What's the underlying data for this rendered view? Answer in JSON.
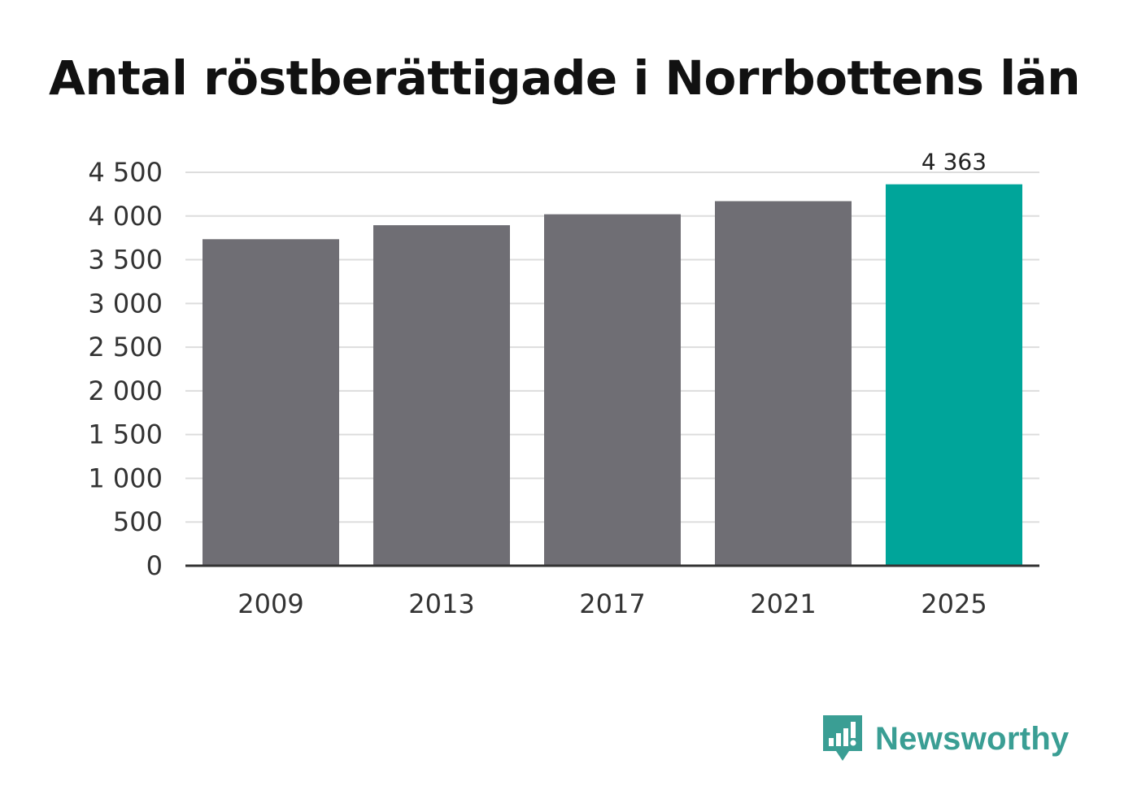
{
  "chart_data": {
    "type": "bar",
    "title": "Antal röstberättigade i Norrbottens län",
    "xlabel": "",
    "ylabel": "",
    "categories": [
      "2009",
      "2013",
      "2017",
      "2021",
      "2025"
    ],
    "values": [
      3735,
      3895,
      4020,
      4170,
      4363
    ],
    "highlight_index": 4,
    "data_labels": [
      null,
      null,
      null,
      null,
      "4 363"
    ],
    "ylim": [
      0,
      4500
    ],
    "yticks": [
      0,
      500,
      1000,
      1500,
      2000,
      2500,
      3000,
      3500,
      4000,
      4500
    ],
    "ytick_labels": [
      "0",
      "500",
      "1 000",
      "1 500",
      "2 000",
      "2 500",
      "3 000",
      "3 500",
      "4 000",
      "4 500"
    ],
    "grid": true,
    "colors": {
      "bar": "#6f6e74",
      "highlight": "#00a59a",
      "grid": "#dddddd",
      "axis": "#333333"
    }
  },
  "brand": {
    "name": "Newsworthy",
    "icon": "newsworthy-logo-icon",
    "color": "#3a9e94"
  }
}
